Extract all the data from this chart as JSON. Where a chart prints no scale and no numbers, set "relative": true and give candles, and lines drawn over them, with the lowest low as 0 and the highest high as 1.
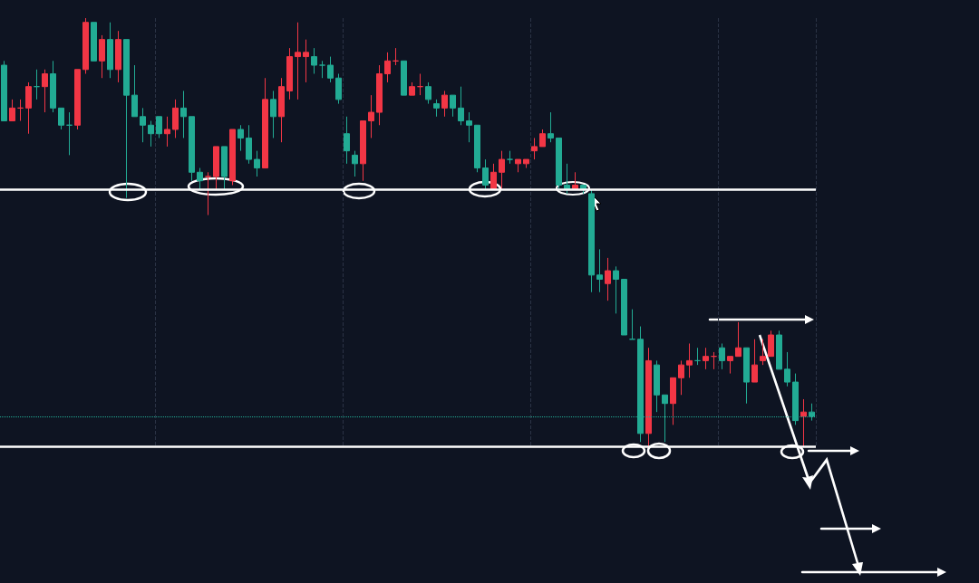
{
  "chart_data": {
    "type": "candlestick",
    "relative": true,
    "grid": "x",
    "categories": [
      null,
      null,
      null,
      null,
      null,
      null,
      null,
      null,
      null,
      null,
      null,
      null,
      null,
      null,
      null,
      null,
      null,
      null,
      null,
      null,
      null,
      null,
      null,
      null,
      null,
      null,
      null,
      null,
      null,
      null,
      null,
      null,
      null,
      null,
      null,
      null,
      null,
      null,
      null,
      null,
      null,
      null,
      null,
      null,
      null,
      null,
      null,
      null,
      null,
      null,
      null,
      null,
      null,
      null,
      null,
      null,
      null,
      null,
      null,
      null,
      null,
      null,
      null,
      null,
      null,
      null,
      null,
      null,
      null,
      null,
      null,
      null,
      null,
      null,
      null,
      null,
      null,
      null,
      null,
      null,
      null,
      null,
      null,
      null,
      null,
      null,
      null,
      null,
      null,
      null,
      null,
      null,
      null,
      null,
      null,
      null,
      null,
      null,
      null,
      null
    ],
    "ohlc": [
      [
        0.89,
        0.9,
        0.76,
        0.76
      ],
      [
        0.76,
        0.81,
        0.76,
        0.79
      ],
      [
        0.79,
        0.81,
        0.76,
        0.79
      ],
      [
        0.79,
        0.85,
        0.73,
        0.84
      ],
      [
        0.84,
        0.88,
        0.81,
        0.84
      ],
      [
        0.84,
        0.88,
        0.78,
        0.87
      ],
      [
        0.87,
        0.9,
        0.78,
        0.79
      ],
      [
        0.79,
        0.79,
        0.74,
        0.75
      ],
      [
        0.75,
        0.78,
        0.68,
        0.75
      ],
      [
        0.75,
        0.88,
        0.74,
        0.88
      ],
      [
        0.88,
        1.0,
        0.87,
        0.99
      ],
      [
        0.99,
        0.99,
        0.9,
        0.9
      ],
      [
        0.9,
        0.96,
        0.86,
        0.95
      ],
      [
        0.95,
        0.99,
        0.86,
        0.88
      ],
      [
        0.88,
        0.97,
        0.85,
        0.95
      ],
      [
        0.95,
        0.95,
        0.58,
        0.82
      ],
      [
        0.82,
        0.89,
        0.77,
        0.77
      ],
      [
        0.77,
        0.79,
        0.71,
        0.75
      ],
      [
        0.75,
        0.76,
        0.7,
        0.73
      ],
      [
        0.77,
        0.77,
        0.72,
        0.73
      ],
      [
        0.73,
        0.77,
        0.7,
        0.74
      ],
      [
        0.74,
        0.81,
        0.72,
        0.79
      ],
      [
        0.79,
        0.83,
        0.72,
        0.77
      ],
      [
        0.77,
        0.77,
        0.62,
        0.64
      ],
      [
        0.64,
        0.65,
        0.6,
        0.62
      ],
      [
        0.63,
        0.64,
        0.54,
        0.63
      ],
      [
        0.63,
        0.7,
        0.6,
        0.7
      ],
      [
        0.7,
        0.7,
        0.6,
        0.63
      ],
      [
        0.62,
        0.74,
        0.61,
        0.74
      ],
      [
        0.74,
        0.75,
        0.69,
        0.72
      ],
      [
        0.72,
        0.75,
        0.66,
        0.67
      ],
      [
        0.67,
        0.69,
        0.63,
        0.65
      ],
      [
        0.65,
        0.86,
        0.65,
        0.81
      ],
      [
        0.81,
        0.83,
        0.72,
        0.77
      ],
      [
        0.77,
        0.86,
        0.71,
        0.84
      ],
      [
        0.83,
        0.93,
        0.81,
        0.91
      ],
      [
        0.91,
        0.99,
        0.81,
        0.92
      ],
      [
        0.91,
        0.95,
        0.85,
        0.92
      ],
      [
        0.91,
        0.93,
        0.87,
        0.89
      ],
      [
        0.89,
        0.9,
        0.86,
        0.89
      ],
      [
        0.89,
        0.91,
        0.85,
        0.86
      ],
      [
        0.86,
        0.87,
        0.8,
        0.81
      ],
      [
        0.73,
        0.77,
        0.66,
        0.69
      ],
      [
        0.68,
        0.69,
        0.63,
        0.66
      ],
      [
        0.66,
        0.76,
        0.62,
        0.76
      ],
      [
        0.76,
        0.82,
        0.72,
        0.78
      ],
      [
        0.78,
        0.89,
        0.75,
        0.87
      ],
      [
        0.87,
        0.92,
        0.85,
        0.9
      ],
      [
        0.9,
        0.93,
        0.89,
        0.9
      ],
      [
        0.9,
        0.9,
        0.82,
        0.82
      ],
      [
        0.82,
        0.85,
        0.82,
        0.84
      ],
      [
        0.84,
        0.87,
        0.82,
        0.84
      ],
      [
        0.84,
        0.85,
        0.8,
        0.81
      ],
      [
        0.8,
        0.81,
        0.77,
        0.79
      ],
      [
        0.79,
        0.83,
        0.77,
        0.82
      ],
      [
        0.82,
        0.82,
        0.77,
        0.79
      ],
      [
        0.79,
        0.84,
        0.75,
        0.76
      ],
      [
        0.76,
        0.78,
        0.71,
        0.75
      ],
      [
        0.75,
        0.75,
        0.64,
        0.65
      ],
      [
        0.65,
        0.67,
        0.6,
        0.61
      ],
      [
        0.6,
        0.66,
        0.6,
        0.64
      ],
      [
        0.64,
        0.69,
        0.6,
        0.67
      ],
      [
        0.67,
        0.69,
        0.66,
        0.67
      ],
      [
        0.66,
        0.67,
        0.64,
        0.67
      ],
      [
        0.66,
        0.67,
        0.65,
        0.67
      ],
      [
        0.69,
        0.72,
        0.67,
        0.7
      ],
      [
        0.7,
        0.74,
        0.7,
        0.73
      ],
      [
        0.73,
        0.78,
        0.71,
        0.72
      ],
      [
        0.72,
        0.72,
        0.6,
        0.61
      ],
      [
        0.61,
        0.66,
        0.59,
        0.6
      ],
      [
        0.6,
        0.64,
        0.6,
        0.61
      ],
      [
        0.61,
        0.61,
        0.59,
        0.6
      ],
      [
        0.59,
        0.6,
        0.36,
        0.4
      ],
      [
        0.4,
        0.46,
        0.36,
        0.39
      ],
      [
        0.38,
        0.44,
        0.34,
        0.41
      ],
      [
        0.41,
        0.42,
        0.31,
        0.39
      ],
      [
        0.39,
        0.39,
        0.26,
        0.26
      ],
      [
        0.25,
        0.32,
        0.25,
        0.25
      ],
      [
        0.25,
        0.28,
        0.01,
        0.03
      ],
      [
        0.03,
        0.23,
        0,
        0.2
      ],
      [
        0.19,
        0.2,
        0.08,
        0.12
      ],
      [
        0.12,
        0.12,
        0.01,
        0.1
      ],
      [
        0.1,
        0.16,
        0.05,
        0.16
      ],
      [
        0.16,
        0.2,
        0.12,
        0.19
      ],
      [
        0.19,
        0.24,
        0.16,
        0.2
      ],
      [
        0.2,
        0.23,
        0.19,
        0.2
      ],
      [
        0.2,
        0.23,
        0.18,
        0.21
      ],
      [
        0.21,
        0.22,
        0.18,
        0.21
      ],
      [
        0.23,
        0.24,
        0.18,
        0.2
      ],
      [
        0.2,
        0.21,
        0.17,
        0.21
      ],
      [
        0.21,
        0.29,
        0.21,
        0.23
      ],
      [
        0.23,
        0.23,
        0.1,
        0.15
      ],
      [
        0.15,
        0.25,
        0.15,
        0.19
      ],
      [
        0.2,
        0.25,
        0.19,
        0.21
      ],
      [
        0.21,
        0.27,
        0.21,
        0.26
      ],
      [
        0.26,
        0.27,
        0.18,
        0.18
      ],
      [
        0.18,
        0.22,
        0.14,
        0.15
      ],
      [
        0.15,
        0.17,
        0.05,
        0.06
      ],
      [
        0.07,
        0.11,
        0,
        0.08
      ],
      [
        0.08,
        0.1,
        0.06,
        0.07
      ]
    ],
    "colors": [
      "#22ab94",
      "#f23645",
      "#f23645",
      "#f23645",
      "#22ab94",
      "#f23645",
      "#22ab94",
      "#22ab94",
      "#22ab94",
      "#f23645",
      "#f23645",
      "#22ab94",
      "#f23645",
      "#22ab94",
      "#f23645",
      "#22ab94",
      "#22ab94",
      "#22ab94",
      "#22ab94",
      "#22ab94",
      "#f23645",
      "#f23645",
      "#22ab94",
      "#22ab94",
      "#22ab94",
      "#f23645",
      "#f23645",
      "#22ab94",
      "#f23645",
      "#22ab94",
      "#22ab94",
      "#22ab94",
      "#f23645",
      "#22ab94",
      "#f23645",
      "#f23645",
      "#f23645",
      "#f23645",
      "#22ab94",
      "#22ab94",
      "#22ab94",
      "#22ab94",
      "#22ab94",
      "#22ab94",
      "#f23645",
      "#f23645",
      "#f23645",
      "#f23645",
      "#f23645",
      "#22ab94",
      "#f23645",
      "#f23645",
      "#22ab94",
      "#22ab94",
      "#f23645",
      "#22ab94",
      "#22ab94",
      "#22ab94",
      "#22ab94",
      "#22ab94",
      "#f23645",
      "#f23645",
      "#22ab94",
      "#f23645",
      "#f23645",
      "#f23645",
      "#f23645",
      "#22ab94",
      "#22ab94",
      "#22ab94",
      "#f23645",
      "#22ab94",
      "#22ab94",
      "#22ab94",
      "#f23645",
      "#22ab94",
      "#22ab94",
      "#22ab94",
      "#22ab94",
      "#f23645",
      "#22ab94",
      "#22ab94",
      "#f23645",
      "#f23645",
      "#f23645",
      "#22ab94",
      "#f23645",
      "#f23645",
      "#22ab94",
      "#f23645",
      "#f23645",
      "#22ab94",
      "#f23645",
      "#f23645",
      "#f23645",
      "#22ab94",
      "#22ab94",
      "#22ab94",
      "#f23645",
      "#22ab94"
    ],
    "ref_lines": [
      {
        "axis": "y",
        "value": 0.6,
        "color": "#ffffff",
        "line_style": "solid"
      },
      {
        "axis": "y",
        "value": 0,
        "color": "#ffffff",
        "line_style": "solid"
      },
      {
        "axis": "y",
        "value": 0.07,
        "color": "#22ab94",
        "line_style": "dotted"
      }
    ]
  }
}
